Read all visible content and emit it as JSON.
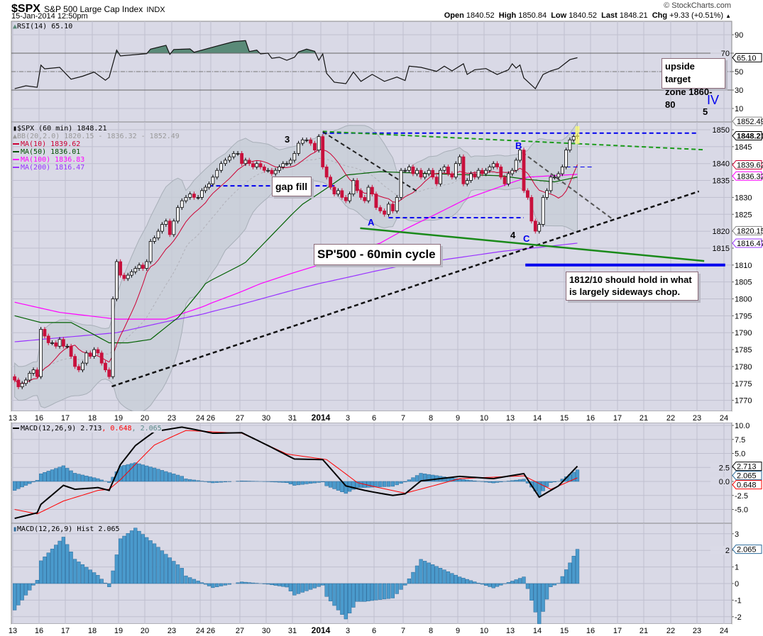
{
  "header": {
    "symbol": "$SPX",
    "name": "S&P 500 Large Cap Index",
    "exchange": "INDX",
    "datetime": "15-Jan-2014 12:50pm",
    "copyright": "© StockCharts.com",
    "quote": [
      {
        "label": "Open",
        "value": "1840.52"
      },
      {
        "label": "High",
        "value": "1850.84"
      },
      {
        "label": "Low",
        "value": "1840.52"
      },
      {
        "label": "Last",
        "value": "1848.21"
      },
      {
        "label": "Chg",
        "value": "+9.33 (+0.51%)"
      }
    ],
    "chg_arrow": "▲"
  },
  "chart_data": {
    "type": "candlestick",
    "x_axis": {
      "labels": [
        "13",
        "16",
        "17",
        "18",
        "19",
        "20",
        "23",
        "24",
        "26",
        "27",
        "30",
        "31",
        "2014",
        "3",
        "6",
        "7",
        "8",
        "9",
        "10",
        "13",
        "14",
        "15",
        "16",
        "17",
        "21",
        "22",
        "23",
        "24"
      ]
    },
    "colors": {
      "up": "#ffffff",
      "down": "#c8103c",
      "ma10": "#cc0033",
      "ma50": "#006000",
      "ma100": "#ff00ff",
      "ma200": "#9933ff",
      "bb_fill": "#c5ccd6",
      "rsi_fill": "#5a8a78",
      "hist": "#4a9acc",
      "macd": "#000000",
      "signal": "#ff0000",
      "panel": "#d9d9e6",
      "grid": "#bfbfcf"
    },
    "price": {
      "legend": {
        "title": "$SPX (60 min) 1848.21",
        "bb": "BB(20,2.0) 1820.15 - 1836.32 - 1852.49",
        "ma10": "MA(10) 1839.62",
        "ma50": "MA(50) 1836.01",
        "ma100": "MA(100) 1836.83",
        "ma200": "MA(200) 1816.47"
      },
      "ylim": [
        1766.8,
        1852.3
      ],
      "ticks": [
        "1770",
        "1775",
        "1780",
        "1785",
        "1790",
        "1795",
        "1800",
        "1805",
        "1810",
        "1815",
        "1820",
        "1825",
        "1830",
        "1835",
        "1840",
        "1845",
        "1850"
      ],
      "days": [
        {
          "label": "13",
          "closes": [
            1776,
            1774,
            1775,
            1776,
            1778,
            1779,
            1777
          ]
        },
        {
          "label": "16",
          "closes": [
            1791,
            1789,
            1787,
            1787,
            1786,
            1788,
            1786
          ]
        },
        {
          "label": "17",
          "closes": [
            1786,
            1783,
            1780,
            1779,
            1781,
            1784,
            1783
          ]
        },
        {
          "label": "18",
          "closes": [
            1785,
            1784,
            1781,
            1779,
            1777,
            1800,
            1811
          ]
        },
        {
          "label": "19",
          "closes": [
            1807,
            1806,
            1807,
            1808,
            1809,
            1810,
            1809
          ]
        },
        {
          "label": "20",
          "closes": [
            1811,
            1817,
            1818,
            1820,
            1822,
            1823,
            1819
          ]
        },
        {
          "label": "23",
          "closes": [
            1823,
            1827,
            1829,
            1830,
            1831,
            1830,
            1830
          ]
        },
        {
          "label": "24",
          "closes": [
            1832,
            1833,
            1834
          ]
        },
        {
          "label": "26",
          "closes": [
            1836,
            1838,
            1840,
            1841,
            1842,
            1843,
            1843
          ]
        },
        {
          "label": "27",
          "closes": [
            1840,
            1841,
            1840,
            1839,
            1840,
            1839,
            1838
          ]
        },
        {
          "label": "30",
          "closes": [
            1838,
            1837,
            1838,
            1839,
            1840,
            1840,
            1841
          ]
        },
        {
          "label": "31",
          "closes": [
            1843,
            1846,
            1847,
            1847,
            1846,
            1844,
            1848
          ]
        },
        {
          "label": "2014",
          "closes": [
            1839,
            1836,
            1833,
            1831,
            1832,
            1830,
            1829
          ]
        },
        {
          "label": "3",
          "closes": [
            1831,
            1835,
            1832,
            1830,
            1829,
            1833,
            1831
          ]
        },
        {
          "label": "6",
          "closes": [
            1827,
            1826,
            1825,
            1828,
            1826,
            1830,
            1838
          ]
        },
        {
          "label": "7",
          "closes": [
            1838,
            1839,
            1837,
            1838,
            1836,
            1837,
            1838
          ]
        },
        {
          "label": "8",
          "closes": [
            1836,
            1834,
            1838,
            1839,
            1837,
            1836,
            1840
          ]
        },
        {
          "label": "9",
          "closes": [
            1842,
            1834,
            1835,
            1837,
            1836,
            1838,
            1837
          ]
        },
        {
          "label": "10",
          "closes": [
            1838,
            1839,
            1840,
            1839,
            1836,
            1834,
            1837
          ]
        },
        {
          "label": "13",
          "closes": [
            1838,
            1841,
            1844,
            1832,
            1830,
            1823,
            1820
          ]
        },
        {
          "label": "14",
          "closes": [
            1822,
            1830,
            1832,
            1836,
            1836,
            1837,
            1839
          ]
        },
        {
          "label": "15",
          "closes": [
            1844,
            1847,
            1848,
            1848.21
          ]
        }
      ],
      "ma50": [
        [
          0,
          1795
        ],
        [
          7,
          1793
        ],
        [
          15,
          1793
        ],
        [
          25,
          1787
        ],
        [
          30,
          1787
        ],
        [
          36,
          1788
        ],
        [
          43,
          1794.4
        ],
        [
          50,
          1804.5
        ],
        [
          60,
          1810.8
        ],
        [
          75,
          1828
        ],
        [
          86,
          1836.6
        ],
        [
          95,
          1837.6
        ],
        [
          108,
          1837
        ],
        [
          126,
          1836.4
        ],
        [
          133,
          1835.3
        ],
        [
          140,
          1834.6
        ],
        [
          146,
          1836.01
        ]
      ],
      "ma100": [
        [
          0,
          1799
        ],
        [
          12,
          1796
        ],
        [
          27,
          1794
        ],
        [
          40,
          1794
        ],
        [
          50,
          1798
        ],
        [
          64,
          1804.5
        ],
        [
          79,
          1810
        ],
        [
          95,
          1816.5
        ],
        [
          101,
          1820.6
        ],
        [
          117,
          1829.7
        ],
        [
          133,
          1836
        ],
        [
          146,
          1836.83
        ]
      ],
      "ma200": [
        [
          0,
          1787.3
        ],
        [
          27,
          1790
        ],
        [
          50,
          1795.7
        ],
        [
          79,
          1804.5
        ],
        [
          101,
          1810
        ],
        [
          126,
          1814
        ],
        [
          146,
          1816.47
        ]
      ],
      "tags": [
        {
          "value": "1852.49",
          "color": "#888888"
        },
        {
          "value": "1848.21",
          "color": "#000000"
        },
        {
          "value": "1839.62",
          "color": "#cc0033"
        },
        {
          "value": "1836.32",
          "color": "#ff00ff"
        },
        {
          "value": "1820.15",
          "color": "#888888"
        },
        {
          "value": "1816.47",
          "color": "#9933ff"
        }
      ]
    },
    "rsi": {
      "legend": "RSI(14) 65.10",
      "ticks": [
        "10",
        "30",
        "50",
        "70",
        "90"
      ],
      "overbought": 70,
      "oversold": 30,
      "values": [
        [
          0,
          31.5
        ],
        [
          3,
          34.6
        ],
        [
          6,
          33
        ],
        [
          7,
          57
        ],
        [
          8,
          53
        ],
        [
          12,
          54.6
        ],
        [
          15,
          41.8
        ],
        [
          18,
          45
        ],
        [
          21,
          49.5
        ],
        [
          24,
          40.7
        ],
        [
          25,
          43.8
        ],
        [
          27,
          73.3
        ],
        [
          28,
          67
        ],
        [
          35,
          69.5
        ],
        [
          36,
          74.4
        ],
        [
          40,
          78.5
        ],
        [
          41,
          68.7
        ],
        [
          42,
          74
        ],
        [
          46,
          74.6
        ],
        [
          47,
          71
        ],
        [
          54,
          79
        ],
        [
          57,
          82.5
        ],
        [
          60,
          83.6
        ],
        [
          61,
          71.8
        ],
        [
          63,
          73.3
        ],
        [
          64,
          69.2
        ],
        [
          66,
          70
        ],
        [
          67,
          64.4
        ],
        [
          69,
          65.6
        ],
        [
          71,
          62.3
        ],
        [
          73,
          65.6
        ],
        [
          74,
          71.3
        ],
        [
          76,
          74.4
        ],
        [
          78,
          72
        ],
        [
          79,
          62.3
        ],
        [
          80,
          69.2
        ],
        [
          81,
          48.2
        ],
        [
          83,
          38.5
        ],
        [
          86,
          36.9
        ],
        [
          88,
          49.6
        ],
        [
          90,
          39.4
        ],
        [
          93,
          47
        ],
        [
          96,
          39.4
        ],
        [
          99,
          44.1
        ],
        [
          101,
          40.3
        ],
        [
          102,
          55.9
        ],
        [
          105,
          54.6
        ],
        [
          109,
          50.3
        ],
        [
          111,
          55.9
        ],
        [
          113,
          50.8
        ],
        [
          116,
          58.5
        ],
        [
          117,
          46.9
        ],
        [
          119,
          52
        ],
        [
          122,
          53.3
        ],
        [
          125,
          46.9
        ],
        [
          128,
          52
        ],
        [
          129,
          58.5
        ],
        [
          130,
          53.8
        ],
        [
          131,
          57.2
        ],
        [
          132,
          43.1
        ],
        [
          135,
          31.5
        ],
        [
          137,
          46.9
        ],
        [
          139,
          50.8
        ],
        [
          141,
          53.3
        ],
        [
          144,
          63
        ],
        [
          146,
          65.1
        ]
      ],
      "tag": "65.10"
    },
    "macd": {
      "legend_main": "MACD(12,26,9) 2.713",
      "legend_signal": ", 0.648",
      "legend_hist": ", 2.065",
      "ticks": [
        "-5.0",
        "-2.5",
        "0.0",
        "2.5",
        "5.0",
        "7.5",
        "10.0"
      ],
      "macd": [
        [
          0,
          -6.6
        ],
        [
          6,
          -5.6
        ],
        [
          7,
          -4.1
        ],
        [
          13,
          -0.7
        ],
        [
          16,
          -1.4
        ],
        [
          22,
          -1.1
        ],
        [
          25,
          -1.6
        ],
        [
          28,
          3.0
        ],
        [
          32,
          6.4
        ],
        [
          37,
          8.9
        ],
        [
          44,
          9.7
        ],
        [
          52,
          8.6
        ],
        [
          59,
          8.7
        ],
        [
          66,
          6.4
        ],
        [
          73,
          4.0
        ],
        [
          80,
          3.9
        ],
        [
          86,
          -0.8
        ],
        [
          91,
          -1.6
        ],
        [
          98,
          -2.5
        ],
        [
          101,
          -2.2
        ],
        [
          105,
          0.1
        ],
        [
          115,
          0.9
        ],
        [
          124,
          0.5
        ],
        [
          132,
          1.4
        ],
        [
          136,
          -2.8
        ],
        [
          141,
          -0.8
        ],
        [
          146,
          2.713
        ]
      ],
      "signal": [
        [
          0,
          -5.0
        ],
        [
          6,
          -5.8
        ],
        [
          13,
          -3.5
        ],
        [
          22,
          -1.6
        ],
        [
          25,
          -1.4
        ],
        [
          28,
          0.3
        ],
        [
          37,
          6.5
        ],
        [
          45,
          9.1
        ],
        [
          59,
          8.6
        ],
        [
          71,
          4.9
        ],
        [
          81,
          3.9
        ],
        [
          89,
          -0.2
        ],
        [
          101,
          -2.1
        ],
        [
          115,
          0.5
        ],
        [
          132,
          1.0
        ],
        [
          139,
          -1.4
        ],
        [
          146,
          0.648
        ]
      ],
      "tags": [
        {
          "value": "2.713",
          "color": "#000000"
        },
        {
          "value": "2.065",
          "color": "#2a6a9a"
        },
        {
          "value": "0.648",
          "color": "#ff0000"
        }
      ]
    },
    "hist": {
      "legend": "MACD(12,26,9) Hist 2.065",
      "ticks": [
        "-2",
        "-1",
        "0",
        "1",
        "2",
        "3"
      ],
      "tag": "2.065"
    },
    "annotations": {
      "lines": [
        {
          "name": "resistance-1848",
          "color": "#0000ee",
          "dash": true,
          "width": 2,
          "points": [
            [
              80,
              1849
            ],
            [
              178.4,
              1849
            ]
          ]
        },
        {
          "name": "green-dashed-resistance",
          "color": "#1a9a1a",
          "dash": true,
          "width": 2,
          "points": [
            [
              80,
              1849.5
            ],
            [
              179.4,
              1844.1
            ]
          ]
        },
        {
          "name": "black-dashed-down",
          "color": "#222222",
          "dash": true,
          "width": 2,
          "points": [
            [
              80,
              1849.4
            ],
            [
              104,
              1831.8
            ]
          ]
        },
        {
          "name": "gap-fill-line",
          "color": "#0000ee",
          "dash": true,
          "width": 2,
          "points": [
            [
              51,
              1833.4
            ],
            [
              83,
              1833.4
            ]
          ]
        },
        {
          "name": "range-floor",
          "color": "#0000ee",
          "dash": true,
          "width": 2,
          "points": [
            [
              97,
              1824
            ],
            [
              132,
              1824
            ]
          ]
        },
        {
          "name": "short-1839-line",
          "color": "#0000ee",
          "dash": true,
          "width": 1,
          "points": [
            [
              143,
              1839
            ],
            [
              150,
              1839
            ]
          ]
        },
        {
          "name": "grey-dashed-down",
          "color": "#555555",
          "dash": true,
          "width": 2,
          "points": [
            [
              131.6,
              1843.3
            ],
            [
              155.1,
              1823.8
            ]
          ]
        },
        {
          "name": "rising-support",
          "color": "#111111",
          "dash": true,
          "width": 2.5,
          "points": [
            [
              25.7,
              1774.1
            ],
            [
              178.4,
              1831.8
            ]
          ]
        },
        {
          "name": "green-support",
          "color": "#1a8a1a",
          "dash": false,
          "width": 2.5,
          "points": [
            [
              89.8,
              1820.9
            ],
            [
              179.8,
              1811.2
            ]
          ]
        },
        {
          "name": "blue-1810",
          "color": "#0000ee",
          "dash": false,
          "width": 4,
          "points": [
            [
              132.4,
              1810
            ],
            [
              185.4,
              1810
            ]
          ]
        }
      ],
      "wave_labels": {
        "w3": "3",
        "A": "A",
        "B": "B",
        "w4": "4",
        "C": "C",
        "w5": "5",
        "IV": "IV"
      },
      "gap_fill": "gap fill",
      "cycle": "SP'500 - 60min cycle",
      "target_line1": "upside target",
      "target_line2": "zone 1860-80",
      "hold_line1": "1812/10 should hold in what",
      "hold_line2": "is largely sideways chop."
    }
  }
}
